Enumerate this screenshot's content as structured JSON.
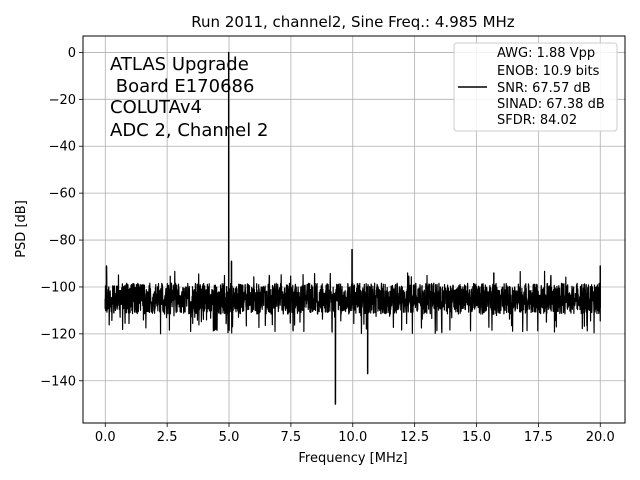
{
  "chart_data": {
    "type": "line",
    "title": "Run 2011, channel2, Sine Freq.: 4.985 MHz",
    "xlabel": "Frequency [MHz]",
    "ylabel": "PSD [dB]",
    "xlim": [
      -0.9,
      21.0
    ],
    "ylim": [
      -158,
      7
    ],
    "grid": true,
    "xticks": [
      0.0,
      2.5,
      5.0,
      7.5,
      10.0,
      12.5,
      15.0,
      17.5,
      20.0
    ],
    "xtick_labels": [
      "0.0",
      "2.5",
      "5.0",
      "7.5",
      "10.0",
      "12.5",
      "15.0",
      "17.5",
      "20.0"
    ],
    "yticks": [
      0,
      -20,
      -40,
      -60,
      -80,
      -100,
      -120,
      -140
    ],
    "ytick_labels": [
      "0",
      "−20",
      "−40",
      "−60",
      "−80",
      "−100",
      "−120",
      "−140"
    ],
    "annotation_lines": [
      "ATLAS Upgrade",
      " Board E170686",
      "COLUTAv4",
      "ADC 2, Channel 2"
    ],
    "legend": {
      "placement": "top-right",
      "lines": [
        "AWG: 1.88 Vpp",
        "ENOB: 10.9 bits",
        "SNR: 67.57 dB",
        "SINAD: 67.38 dB",
        "SFDR: 84.02"
      ]
    },
    "series": [
      {
        "color": "#000000",
        "noise_floor_db": -105,
        "noise_band_db": [
          -120,
          -96
        ],
        "peaks": [
          {
            "x": 0.0,
            "y": -109
          },
          {
            "x": 0.05,
            "y": -91
          },
          {
            "x": 4.985,
            "y": 0
          },
          {
            "x": 5.1,
            "y": -89
          },
          {
            "x": 9.97,
            "y": -84
          },
          {
            "x": 9.3,
            "y": -150
          },
          {
            "x": 10.6,
            "y": -137
          },
          {
            "x": 15.7,
            "y": -94
          },
          {
            "x": 20.0,
            "y": -91
          },
          {
            "x": 20.0,
            "y": -109
          }
        ]
      }
    ]
  }
}
